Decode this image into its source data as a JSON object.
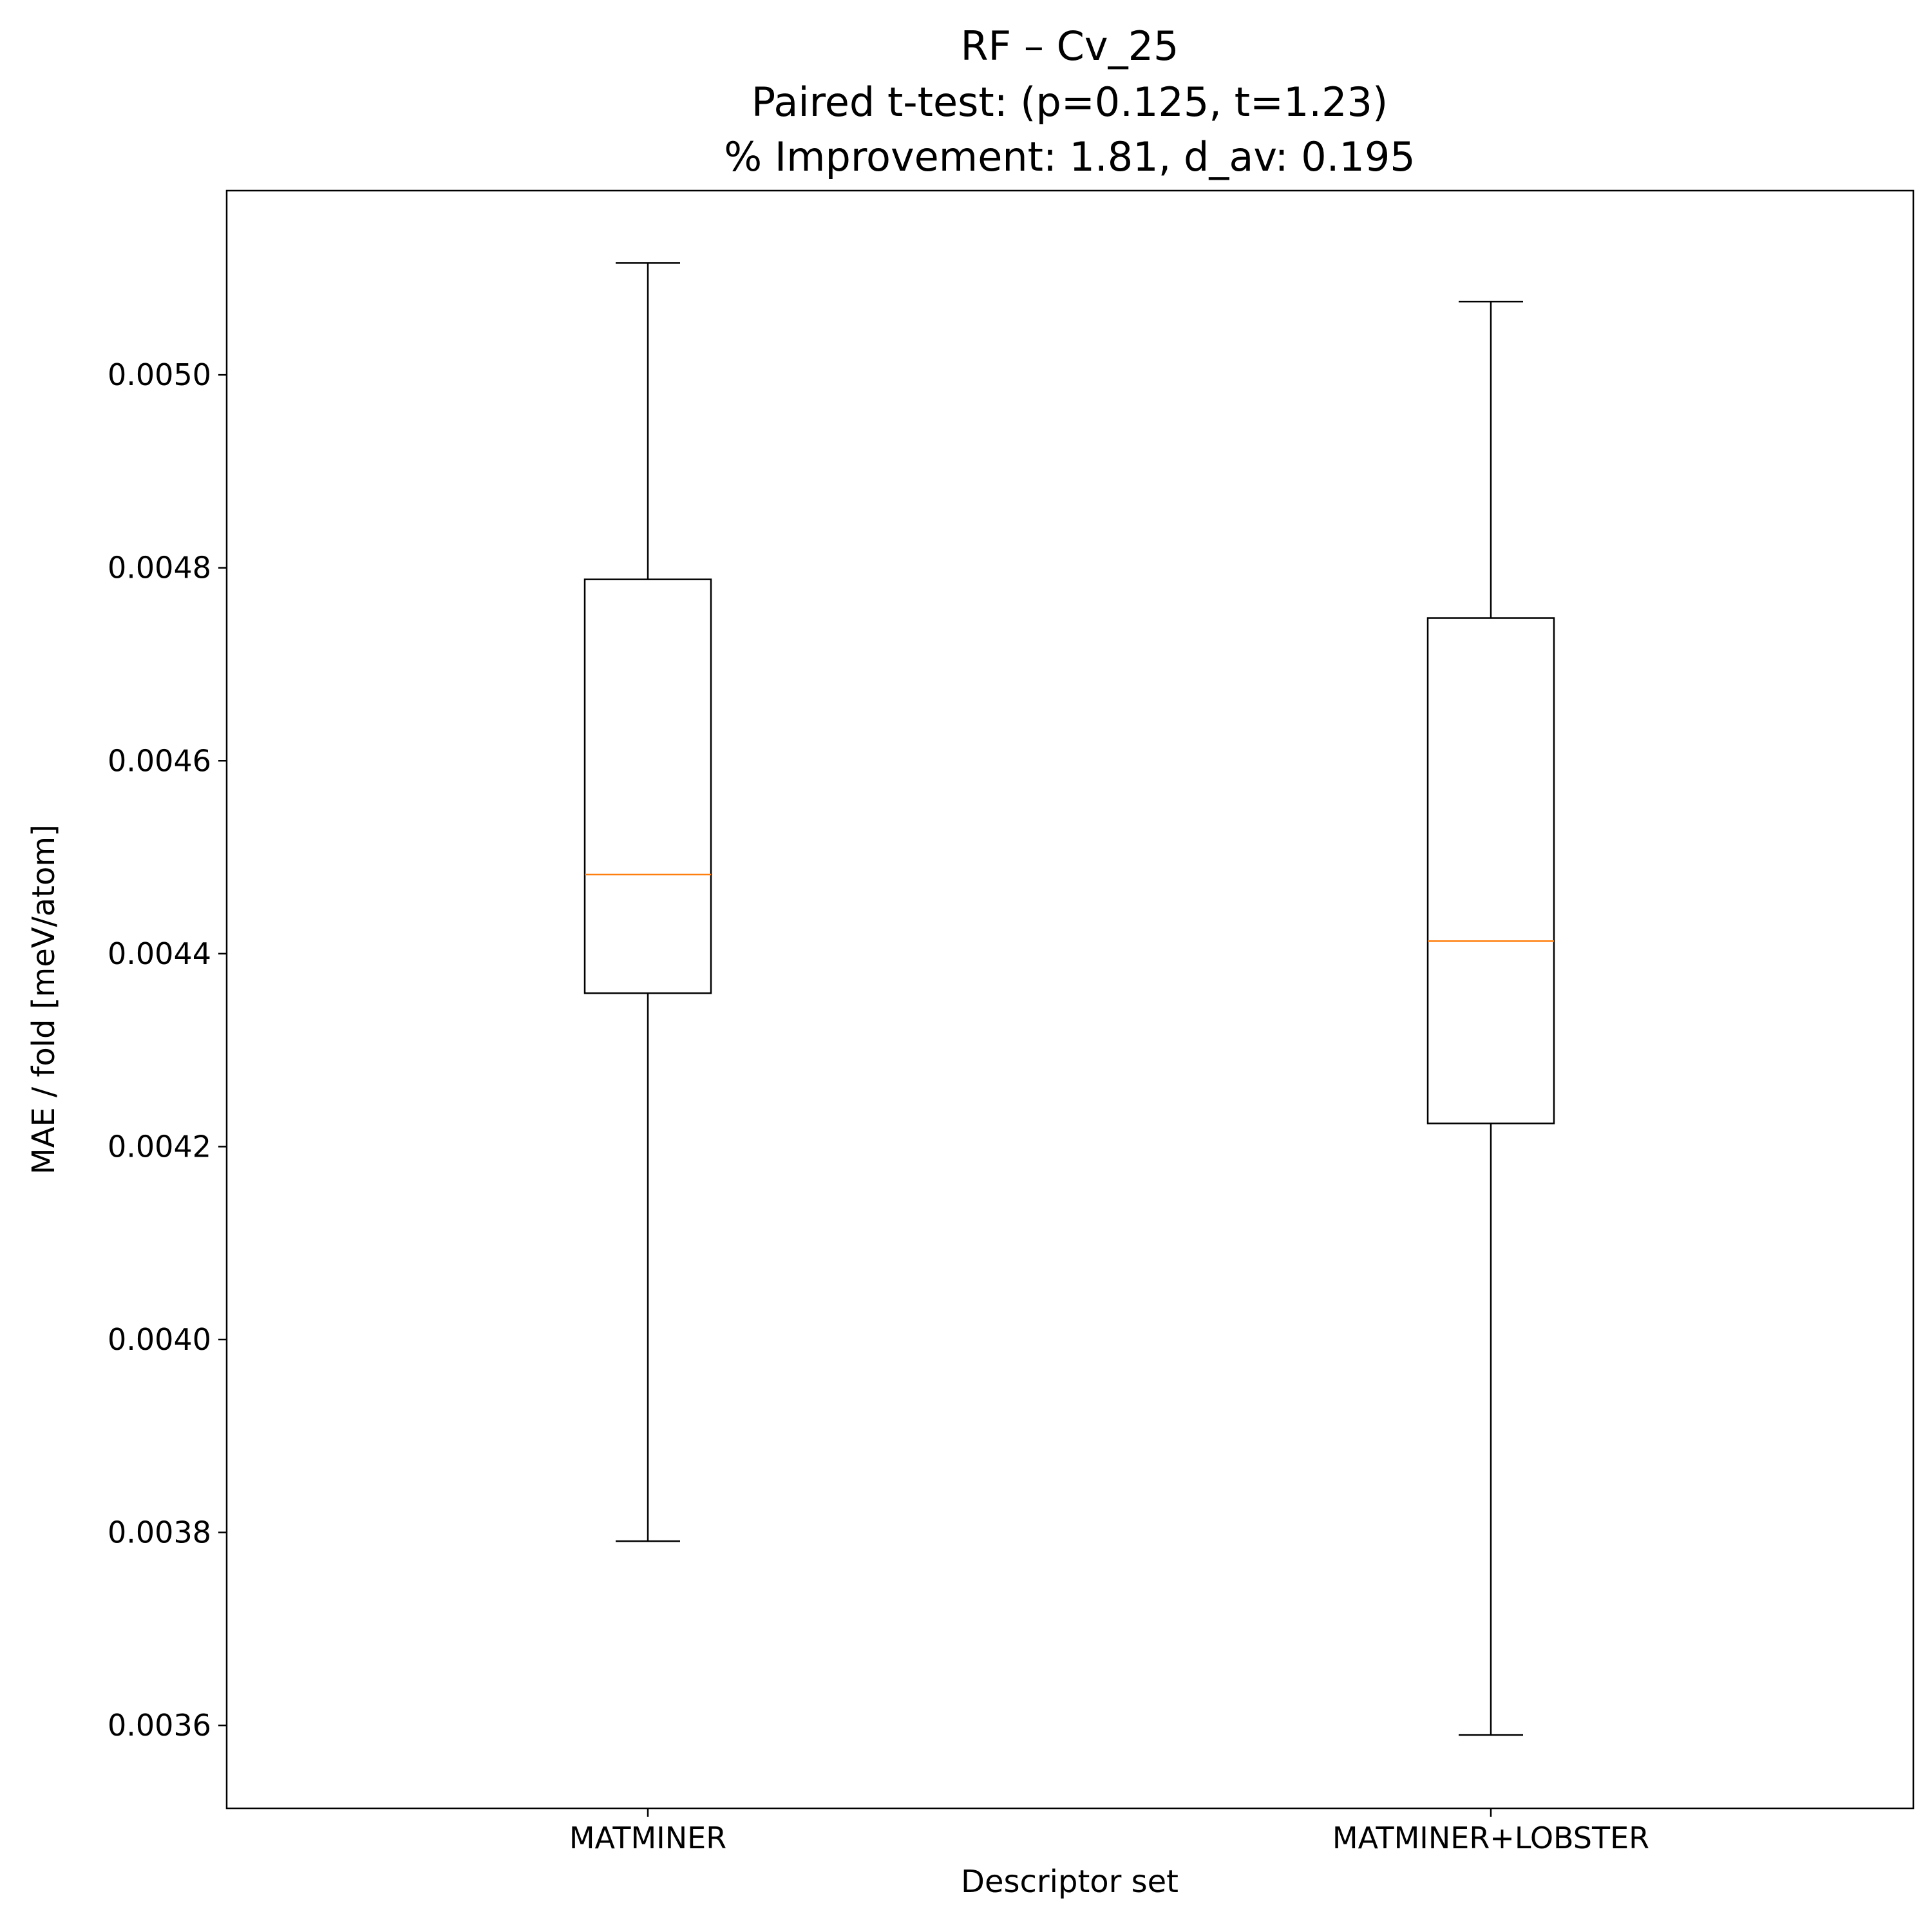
{
  "chart_data": {
    "type": "box",
    "title": [
      "RF – Cv_25",
      "Paired t-test: (p=0.125, t=1.23)",
      "% Improvement: 1.81, d_av: 0.195"
    ],
    "xlabel": "Descriptor set",
    "ylabel": "MAE / fold [meV/atom]",
    "categories": [
      "MATMINER",
      "MATMINER+LOBSTER"
    ],
    "boxes": [
      {
        "whisker_low": 0.003791,
        "q1": 0.004359,
        "median": 0.004482,
        "q3": 0.004788,
        "whisker_high": 0.005116
      },
      {
        "whisker_low": 0.00359,
        "q1": 0.004224,
        "median": 0.004413,
        "q3": 0.004748,
        "whisker_high": 0.005076
      }
    ],
    "ylim": [
      0.003514,
      0.005191
    ],
    "yticks": [
      0.0036,
      0.0038,
      0.004,
      0.0042,
      0.0044,
      0.0046,
      0.0048,
      0.005
    ],
    "ytick_labels": [
      "0.0036",
      "0.0038",
      "0.0040",
      "0.0042",
      "0.0044",
      "0.0046",
      "0.0048",
      "0.0050"
    ],
    "grid": false,
    "colors": {
      "box": "#000000",
      "median": "#ff7f0e"
    }
  }
}
